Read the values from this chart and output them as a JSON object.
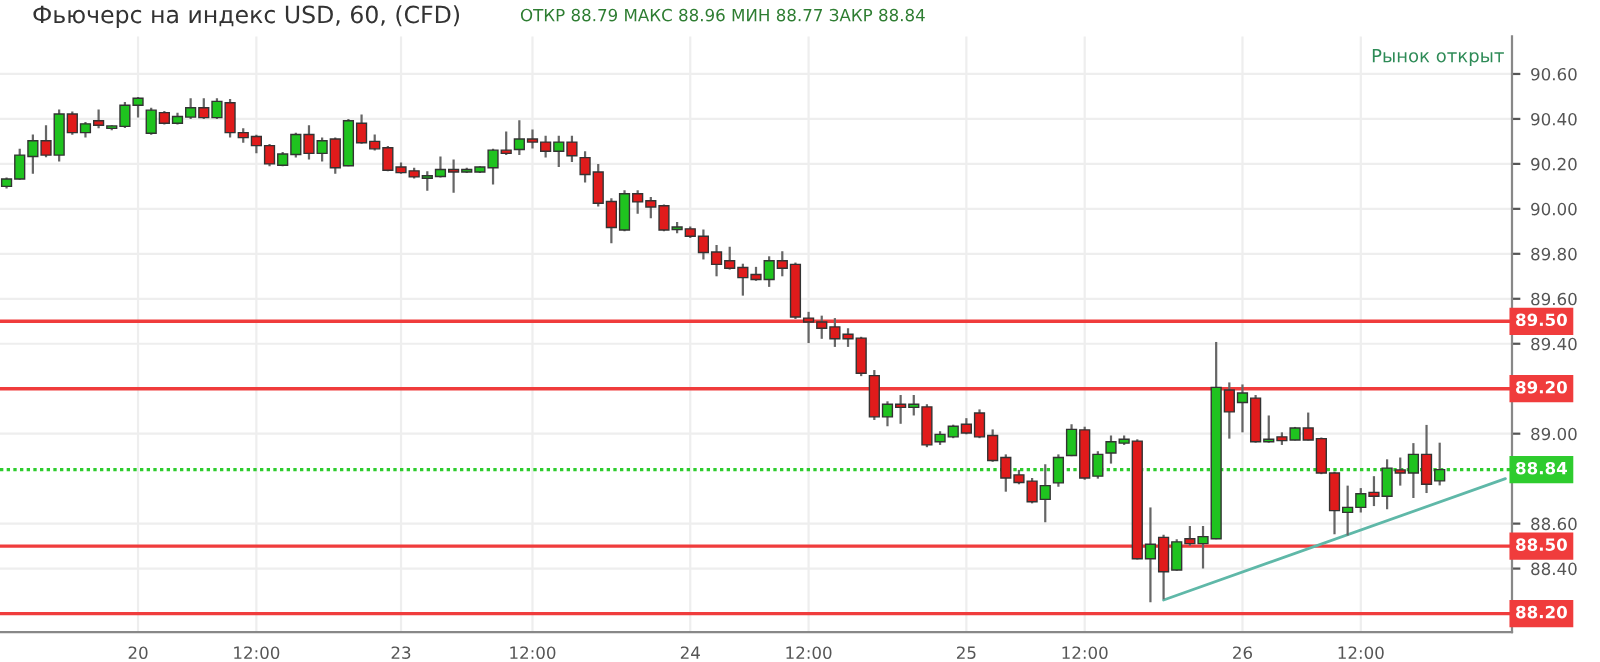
{
  "chart_data": {
    "type": "candlestick",
    "title": "Фьючерс на индекс USD, 60, (CFD)",
    "subtitle": "ОТКР 88.79 МАКС 88.96 МИН 88.77 ЗАКР 88.84",
    "annotations": [
      "Рынок открыт"
    ],
    "categories": [
      null,
      null,
      null,
      null,
      null,
      null,
      null,
      null,
      null,
      null,
      "20",
      null,
      null,
      null,
      null,
      null,
      null,
      null,
      null,
      "12:00",
      null,
      null,
      null,
      null,
      null,
      null,
      null,
      null,
      null,
      null,
      "23",
      null,
      null,
      null,
      null,
      null,
      null,
      null,
      null,
      null,
      "12:00",
      null,
      null,
      null,
      null,
      null,
      null,
      null,
      null,
      null,
      null,
      null,
      "24",
      null,
      null,
      null,
      null,
      null,
      null,
      null,
      null,
      "12:00",
      null,
      null,
      null,
      null,
      null,
      null,
      null,
      null,
      null,
      null,
      null,
      "25",
      null,
      null,
      null,
      null,
      null,
      null,
      null,
      null,
      "12:00",
      null,
      null,
      null,
      null,
      null,
      null,
      null,
      null,
      null,
      null,
      null,
      "26",
      null,
      null,
      null,
      null,
      null,
      null,
      null,
      null,
      "12:00",
      null,
      null,
      null,
      null,
      null,
      null,
      null,
      null,
      null,
      null,
      null
    ],
    "ohlc": [
      [
        90.1,
        90.14,
        90.09,
        90.133
      ],
      [
        90.133,
        90.267,
        90.13,
        90.239
      ],
      [
        90.233,
        90.331,
        90.156,
        90.303
      ],
      [
        90.303,
        90.372,
        90.23,
        90.239
      ],
      [
        90.239,
        90.442,
        90.211,
        90.422
      ],
      [
        90.422,
        90.433,
        90.33,
        90.339
      ],
      [
        90.339,
        90.386,
        90.317,
        90.378
      ],
      [
        90.392,
        90.442,
        90.358,
        90.372
      ],
      [
        90.358,
        90.372,
        90.35,
        90.369
      ],
      [
        90.367,
        90.475,
        90.36,
        90.461
      ],
      [
        90.461,
        90.497,
        90.406,
        90.492
      ],
      [
        90.336,
        90.45,
        90.33,
        90.439
      ],
      [
        90.428,
        90.435,
        90.375,
        90.381
      ],
      [
        90.381,
        90.428,
        90.375,
        90.411
      ],
      [
        90.408,
        90.492,
        90.4,
        90.45
      ],
      [
        90.45,
        90.492,
        90.4,
        90.406
      ],
      [
        90.406,
        90.492,
        90.4,
        90.478
      ],
      [
        90.472,
        90.489,
        90.317,
        90.339
      ],
      [
        90.339,
        90.358,
        90.294,
        90.317
      ],
      [
        90.322,
        90.33,
        90.247,
        90.281
      ],
      [
        90.281,
        90.289,
        90.189,
        90.2
      ],
      [
        90.194,
        90.253,
        90.189,
        90.244
      ],
      [
        90.242,
        90.339,
        90.228,
        90.331
      ],
      [
        90.331,
        90.372,
        90.219,
        90.247
      ],
      [
        90.247,
        90.317,
        90.211,
        90.303
      ],
      [
        90.311,
        90.317,
        90.156,
        90.183
      ],
      [
        90.192,
        90.4,
        90.189,
        90.392
      ],
      [
        90.381,
        90.42,
        90.29,
        90.294
      ],
      [
        90.3,
        90.331,
        90.26,
        90.267
      ],
      [
        90.272,
        90.28,
        90.167,
        90.172
      ],
      [
        90.186,
        90.206,
        90.156,
        90.161
      ],
      [
        90.169,
        90.183,
        90.135,
        90.142
      ],
      [
        90.136,
        90.167,
        90.081,
        90.147
      ],
      [
        90.144,
        90.233,
        90.14,
        90.175
      ],
      [
        90.175,
        90.219,
        90.072,
        90.164
      ],
      [
        90.164,
        90.183,
        90.16,
        90.175
      ],
      [
        90.164,
        90.19,
        90.16,
        90.186
      ],
      [
        90.183,
        90.267,
        90.108,
        90.261
      ],
      [
        90.261,
        90.344,
        90.24,
        90.247
      ],
      [
        90.264,
        90.394,
        90.24,
        90.311
      ],
      [
        90.311,
        90.353,
        90.269,
        90.297
      ],
      [
        90.297,
        90.325,
        90.228,
        90.256
      ],
      [
        90.256,
        90.325,
        90.186,
        90.297
      ],
      [
        90.297,
        90.325,
        90.208,
        90.236
      ],
      [
        90.228,
        90.256,
        90.117,
        90.153
      ],
      [
        90.164,
        90.2,
        90.011,
        90.025
      ],
      [
        90.033,
        90.047,
        89.847,
        89.917
      ],
      [
        89.906,
        90.083,
        89.9,
        90.067
      ],
      [
        90.067,
        90.083,
        89.978,
        90.031
      ],
      [
        90.036,
        90.053,
        89.958,
        90.008
      ],
      [
        90.014,
        90.019,
        89.9,
        89.906
      ],
      [
        89.908,
        89.942,
        89.892,
        89.919
      ],
      [
        89.911,
        89.922,
        89.87,
        89.878
      ],
      [
        89.878,
        89.908,
        89.775,
        89.806
      ],
      [
        89.808,
        89.839,
        89.7,
        89.753
      ],
      [
        89.769,
        89.831,
        89.73,
        89.736
      ],
      [
        89.739,
        89.756,
        89.614,
        89.694
      ],
      [
        89.708,
        89.742,
        89.68,
        89.686
      ],
      [
        89.686,
        89.789,
        89.653,
        89.769
      ],
      [
        89.769,
        89.811,
        89.7,
        89.736
      ],
      [
        89.753,
        89.761,
        89.51,
        89.519
      ],
      [
        89.514,
        89.542,
        89.403,
        89.497
      ],
      [
        89.497,
        89.525,
        89.422,
        89.469
      ],
      [
        89.475,
        89.514,
        89.386,
        89.422
      ],
      [
        89.442,
        89.469,
        89.386,
        89.422
      ],
      [
        89.425,
        89.431,
        89.256,
        89.269
      ],
      [
        89.258,
        89.283,
        89.061,
        89.075
      ],
      [
        89.075,
        89.144,
        89.033,
        89.131
      ],
      [
        89.131,
        89.172,
        89.044,
        89.117
      ],
      [
        89.117,
        89.172,
        89.081,
        89.131
      ],
      [
        89.119,
        89.131,
        88.94,
        88.95
      ],
      [
        88.964,
        89.011,
        88.95,
        88.997
      ],
      [
        88.986,
        89.04,
        88.98,
        89.033
      ],
      [
        89.042,
        89.069,
        88.997,
        89.003
      ],
      [
        89.092,
        89.108,
        88.98,
        88.986
      ],
      [
        88.992,
        89.019,
        88.875,
        88.881
      ],
      [
        88.894,
        88.908,
        88.742,
        88.803
      ],
      [
        88.817,
        88.839,
        88.775,
        88.783
      ],
      [
        88.789,
        88.803,
        88.69,
        88.697
      ],
      [
        88.708,
        88.864,
        88.606,
        88.769
      ],
      [
        88.781,
        88.908,
        88.764,
        88.894
      ],
      [
        88.903,
        89.042,
        88.9,
        89.019
      ],
      [
        89.017,
        89.031,
        88.795,
        88.803
      ],
      [
        88.811,
        88.922,
        88.8,
        88.908
      ],
      [
        88.914,
        88.992,
        88.867,
        88.964
      ],
      [
        88.958,
        88.992,
        88.95,
        88.975
      ],
      [
        88.967,
        88.975,
        88.44,
        88.444
      ],
      [
        88.444,
        88.672,
        88.25,
        88.508
      ],
      [
        88.539,
        88.55,
        88.264,
        88.386
      ],
      [
        88.394,
        88.531,
        88.39,
        88.519
      ],
      [
        88.533,
        88.589,
        88.5,
        88.511
      ],
      [
        88.511,
        88.589,
        88.4,
        88.542
      ],
      [
        88.533,
        89.408,
        88.53,
        89.206
      ],
      [
        89.194,
        89.228,
        88.978,
        89.097
      ],
      [
        89.139,
        89.219,
        89.006,
        89.181
      ],
      [
        89.158,
        89.172,
        88.96,
        88.964
      ],
      [
        88.964,
        89.081,
        88.96,
        88.975
      ],
      [
        88.986,
        89.006,
        88.95,
        88.969
      ],
      [
        88.972,
        89.03,
        88.97,
        89.025
      ],
      [
        89.025,
        89.094,
        88.97,
        88.972
      ],
      [
        88.978,
        88.983,
        88.82,
        88.825
      ],
      [
        88.825,
        88.831,
        88.553,
        88.658
      ],
      [
        88.65,
        88.769,
        88.547,
        88.672
      ],
      [
        88.672,
        88.758,
        88.65,
        88.733
      ],
      [
        88.739,
        88.811,
        88.678,
        88.722
      ],
      [
        88.722,
        88.886,
        88.664,
        88.847
      ],
      [
        88.839,
        88.894,
        88.769,
        88.825
      ],
      [
        88.825,
        88.958,
        88.714,
        88.908
      ],
      [
        88.908,
        89.039,
        88.736,
        88.775
      ],
      [
        88.79,
        88.96,
        88.77,
        88.84
      ],
      null,
      null,
      null,
      null,
      null
    ],
    "colors": [
      "#1fc31f",
      "#1fc31f",
      "#1fc31f",
      "#e01b1b",
      "#1fc31f",
      "#e01b1b",
      "#1fc31f",
      "#e01b1b",
      "#1fc31f",
      "#1fc31f",
      "#1fc31f",
      "#1fc31f",
      "#e01b1b",
      "#1fc31f",
      "#1fc31f",
      "#e01b1b",
      "#1fc31f",
      "#e01b1b",
      "#e01b1b",
      "#e01b1b",
      "#e01b1b",
      "#1fc31f",
      "#1fc31f",
      "#e01b1b",
      "#1fc31f",
      "#e01b1b",
      "#1fc31f",
      "#e01b1b",
      "#e01b1b",
      "#e01b1b",
      "#e01b1b",
      "#e01b1b",
      "#1fc31f",
      "#1fc31f",
      "#e01b1b",
      "#1fc31f",
      "#1fc31f",
      "#1fc31f",
      "#e01b1b",
      "#1fc31f",
      "#e01b1b",
      "#e01b1b",
      "#1fc31f",
      "#e01b1b",
      "#e01b1b",
      "#e01b1b",
      "#e01b1b",
      "#1fc31f",
      "#e01b1b",
      "#e01b1b",
      "#e01b1b",
      "#1fc31f",
      "#e01b1b",
      "#e01b1b",
      "#e01b1b",
      "#e01b1b",
      "#e01b1b",
      "#e01b1b",
      "#1fc31f",
      "#e01b1b",
      "#e01b1b",
      "#e01b1b",
      "#e01b1b",
      "#e01b1b",
      "#e01b1b",
      "#e01b1b",
      "#e01b1b",
      "#1fc31f",
      "#e01b1b",
      "#1fc31f",
      "#e01b1b",
      "#1fc31f",
      "#1fc31f",
      "#e01b1b",
      "#e01b1b",
      "#e01b1b",
      "#e01b1b",
      "#e01b1b",
      "#e01b1b",
      "#1fc31f",
      "#1fc31f",
      "#1fc31f",
      "#e01b1b",
      "#1fc31f",
      "#1fc31f",
      "#1fc31f",
      "#e01b1b",
      "#1fc31f",
      "#e01b1b",
      "#1fc31f",
      "#e01b1b",
      "#1fc31f",
      "#1fc31f",
      "#e01b1b",
      "#1fc31f",
      "#e01b1b",
      "#1fc31f",
      "#e01b1b",
      "#1fc31f",
      "#e01b1b",
      "#e01b1b",
      "#e01b1b",
      "#1fc31f",
      "#1fc31f",
      "#e01b1b",
      "#1fc31f",
      "#e01b1b",
      "#1fc31f",
      "#e01b1b",
      "#1fc31f",
      null,
      null,
      null,
      null,
      null
    ],
    "series": [
      {
        "type": "line",
        "color": "#5fb8a8",
        "values": [
          null,
          null,
          null,
          null,
          null,
          null,
          null,
          null,
          null,
          null,
          null,
          null,
          null,
          null,
          null,
          null,
          null,
          null,
          null,
          null,
          null,
          null,
          null,
          null,
          null,
          null,
          null,
          null,
          null,
          null,
          null,
          null,
          null,
          null,
          null,
          null,
          null,
          null,
          null,
          null,
          null,
          null,
          null,
          null,
          null,
          null,
          null,
          null,
          null,
          null,
          null,
          null,
          null,
          null,
          null,
          null,
          null,
          null,
          null,
          null,
          null,
          null,
          null,
          null,
          null,
          null,
          null,
          null,
          null,
          null,
          null,
          null,
          null,
          null,
          null,
          null,
          null,
          null,
          null,
          null,
          null,
          null,
          null,
          null,
          null,
          null,
          null,
          null,
          88.26,
          null,
          null,
          null,
          null,
          null,
          null,
          null,
          null,
          null,
          null,
          null,
          null,
          null,
          null,
          null,
          null,
          null,
          null,
          null,
          null,
          null,
          null,
          null,
          null,
          null,
          88.8
        ]
      }
    ],
    "ylim": [
      88.117,
      90.767
    ],
    "yticks": [
      {
        "value": 88.4,
        "label": "88.40"
      },
      {
        "value": 88.6,
        "label": "88.60"
      },
      {
        "value": 89.0,
        "label": "89.00"
      },
      {
        "value": 89.4,
        "label": "89.40"
      },
      {
        "value": 89.6,
        "label": "89.60"
      },
      {
        "value": 89.8,
        "label": "89.80"
      },
      {
        "value": 90.0,
        "label": "90.00"
      },
      {
        "value": 90.2,
        "label": "90.20"
      },
      {
        "value": 90.4,
        "label": "90.40"
      },
      {
        "value": 90.6,
        "label": "90.60"
      }
    ],
    "ref_lines": [
      {
        "axis": "y",
        "value": 89.5,
        "label": "89.50",
        "color": "#f03c3c",
        "line_style": "solid"
      },
      {
        "axis": "y",
        "value": 89.2,
        "label": "89.20",
        "color": "#f03c3c",
        "line_style": "solid"
      },
      {
        "axis": "y",
        "value": 88.5,
        "label": "88.50",
        "color": "#f03c3c",
        "line_style": "solid"
      },
      {
        "axis": "y",
        "value": 88.2,
        "label": "88.20",
        "color": "#f03c3c",
        "line_style": "solid"
      },
      {
        "axis": "y",
        "value": 88.84,
        "label": "88.84",
        "color": "#2ecc2e",
        "line_style": "dotted"
      }
    ],
    "grid": true
  }
}
